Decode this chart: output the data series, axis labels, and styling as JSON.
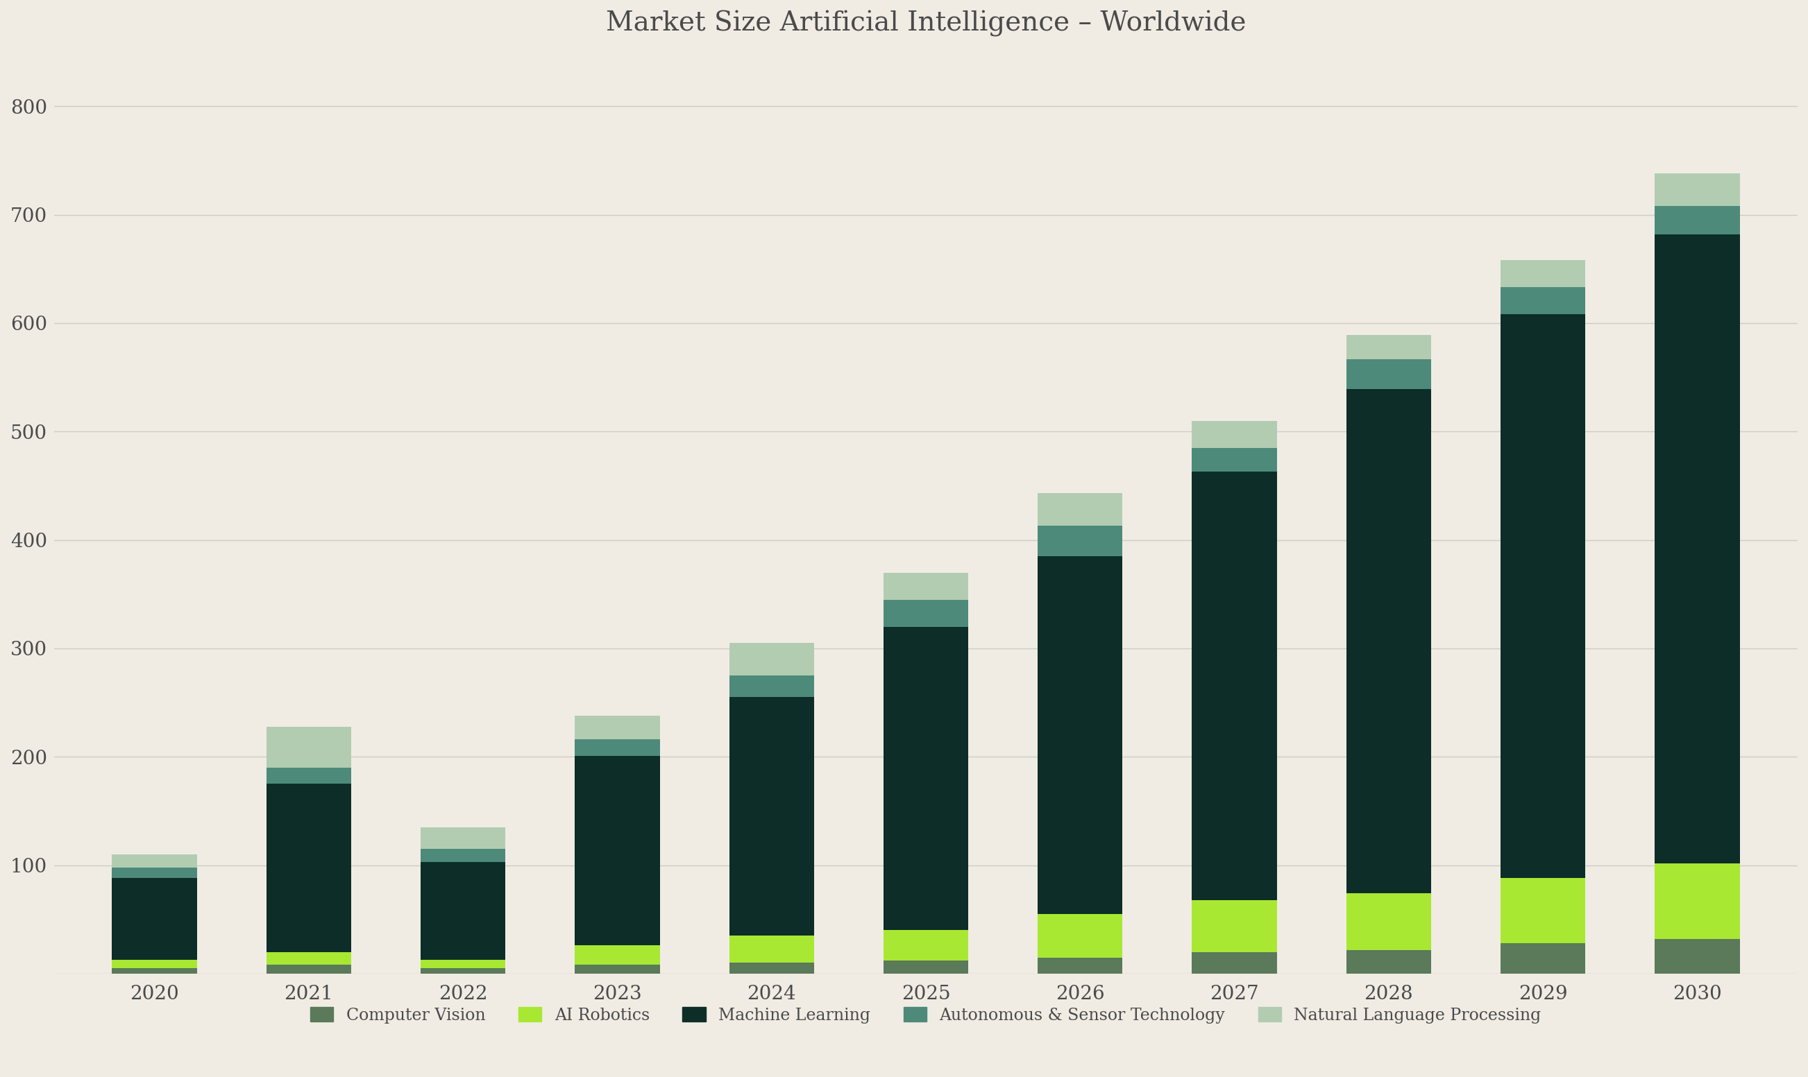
{
  "title": "Market Size Artificial Intelligence – Worldwide",
  "background_color": "#f0ece4",
  "years": [
    2020,
    2021,
    2022,
    2023,
    2024,
    2025,
    2026,
    2027,
    2028,
    2029,
    2030
  ],
  "series": {
    "Computer Vision": [
      5,
      8,
      5,
      8,
      10,
      12,
      15,
      20,
      22,
      28,
      32
    ],
    "AI Robotics": [
      8,
      12,
      8,
      18,
      25,
      28,
      40,
      48,
      52,
      60,
      70
    ],
    "Machine Learning": [
      75,
      155,
      90,
      175,
      220,
      280,
      330,
      395,
      465,
      520,
      580
    ],
    "Autonomous & Sensor Technology": [
      10,
      15,
      12,
      15,
      20,
      25,
      28,
      22,
      28,
      25,
      26
    ],
    "Natural Language Processing": [
      12,
      38,
      20,
      22,
      30,
      25,
      30,
      25,
      22,
      25,
      30
    ]
  },
  "colors": {
    "Computer Vision": "#5a7a5a",
    "AI Robotics": "#a8e832",
    "Machine Learning": "#0d2d28",
    "Autonomous & Sensor Technology": "#4d8a7a",
    "Natural Language Processing": "#b2ccb2"
  },
  "ylim": [
    0,
    850
  ],
  "yticks": [
    0,
    100,
    200,
    300,
    400,
    500,
    600,
    700,
    800
  ],
  "grid_color": "#d0ccc4",
  "tick_color": "#4a4a4a",
  "title_fontsize": 28,
  "tick_fontsize": 20,
  "legend_fontsize": 17,
  "bar_width": 0.55
}
